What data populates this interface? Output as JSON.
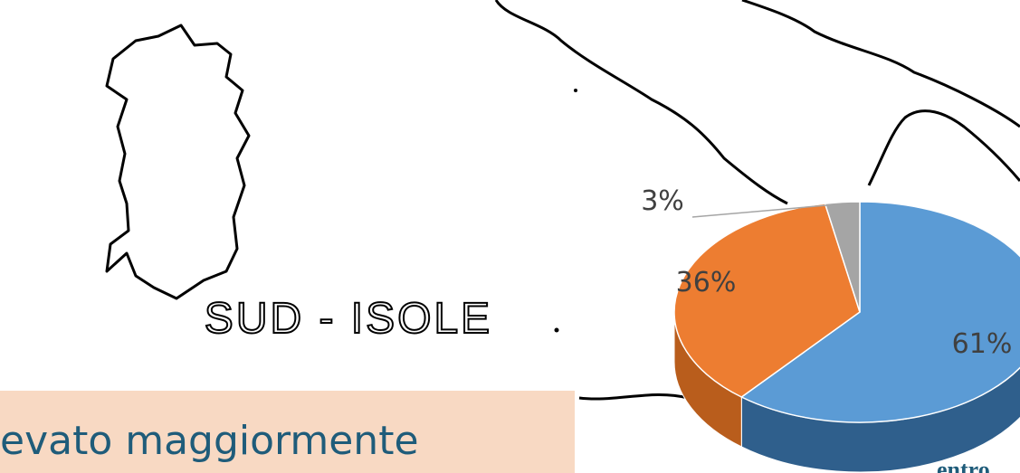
{
  "region_label": "SUD - ISOLE",
  "banner_text": "evato maggiormente",
  "corner_text": "entro",
  "chart_data": {
    "type": "pie",
    "values": [
      61,
      36,
      3
    ],
    "value_labels": [
      "61%",
      "36%",
      "3%"
    ],
    "colors": [
      "#5b9bd5",
      "#ed7d31",
      "#a5a5a5"
    ],
    "side_colors": [
      "#2f5f8c",
      "#b95d1c",
      "#7a7a7a"
    ]
  }
}
